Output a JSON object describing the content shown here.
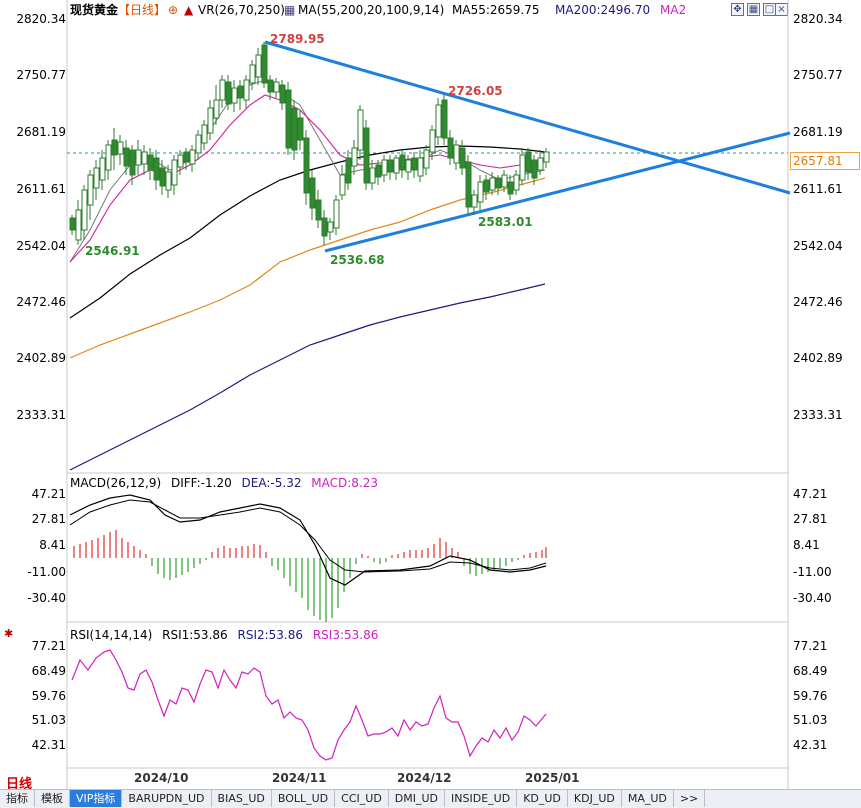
{
  "header": {
    "instrument": "现货黄金",
    "period": "【日线】",
    "vr_label": "VR(26,70,250)",
    "ma_label": "MA(55,200,20,100,9,14)",
    "ma55": "MA55:2659.75",
    "ma200": "MA200:2496.70",
    "ma2": "MA2",
    "toolbar_icons": [
      "expand-icon",
      "grid-icon",
      "maximize-icon",
      "restore-icon",
      "close-icon"
    ]
  },
  "main_axis": [
    "2820.34",
    "2750.77",
    "2681.19",
    "2611.61",
    "2542.04",
    "2472.46",
    "2402.89",
    "2333.31"
  ],
  "last_price": "2657.81",
  "annotations": {
    "high1": "2789.95",
    "high2": "2726.05",
    "low1": "2546.91",
    "low2": "2536.68",
    "low3": "2583.01"
  },
  "macd": {
    "title": "MACD(26,12,9)",
    "diff": "DIFF:-1.20",
    "dea": "DEA:-5.32",
    "macd": "MACD:8.23",
    "axis": [
      "47.21",
      "27.81",
      "8.41",
      "-11.00",
      "-30.40"
    ]
  },
  "rsi": {
    "title": "RSI(14,14,14)",
    "rsi1": "RSI1:53.86",
    "rsi2": "RSI2:53.86",
    "rsi3": "RSI3:53.86",
    "axis": [
      "77.21",
      "68.49",
      "59.76",
      "51.03",
      "42.31"
    ]
  },
  "dates": [
    "2024/10",
    "2024/11",
    "2024/12",
    "2025/01"
  ],
  "period_label": "日线",
  "tabs": [
    "指标",
    "模板",
    "VIP指标",
    "BARUPDN_UD",
    "BIAS_UD",
    "BOLL_UD",
    "CCI_UD",
    "DMI_UD",
    "INSIDE_UD",
    "KD_UD",
    "KDJ_UD",
    "MA_UD",
    ">>"
  ],
  "active_tab": "VIP指标",
  "colors": {
    "up": "#2e8b2e",
    "down": "#2e8b2e",
    "trendline": "#1e7fe0",
    "ma55": "#e08a1e",
    "ma200": "#1a1a80",
    "ma_black": "#000000",
    "ma_pink": "#d0209a",
    "macd_pos": "#e03030",
    "macd_neg": "#2e9e2e",
    "rsi": "#d020c0"
  }
}
